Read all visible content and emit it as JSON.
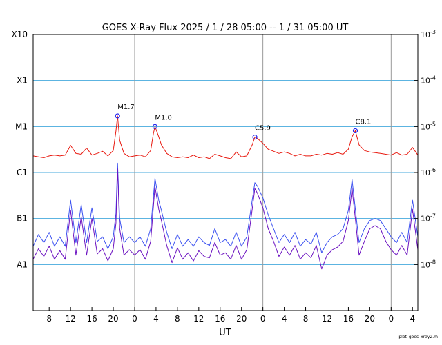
{
  "chart_data": {
    "type": "line",
    "title": "GOES X-Ray Flux   2025  /  1 / 28   05:00 --  1 / 31   05:00   UT",
    "xlabel": "UT",
    "footer": "plot_goes_xray2.m",
    "y_scale": "log",
    "ylim": [
      1e-09,
      0.001
    ],
    "xlim_hours": [
      0,
      72
    ],
    "left_class_labels": [
      {
        "label": "X10",
        "value": 0.001
      },
      {
        "label": "X1",
        "value": 0.0001
      },
      {
        "label": "M1",
        "value": 1e-05
      },
      {
        "label": "C1",
        "value": 1e-06
      },
      {
        "label": "B1",
        "value": 1e-07
      },
      {
        "label": "A1",
        "value": 1e-08
      }
    ],
    "right_ticks": [
      {
        "base": "10",
        "exp": "-3",
        "value": 0.001
      },
      {
        "base": "10",
        "exp": "-4",
        "value": 0.0001
      },
      {
        "base": "10",
        "exp": "-5",
        "value": 1e-05
      },
      {
        "base": "10",
        "exp": "-6",
        "value": 1e-06
      },
      {
        "base": "10",
        "exp": "-7",
        "value": 1e-07
      },
      {
        "base": "10",
        "exp": "-8",
        "value": 1e-08
      }
    ],
    "grid_levels": [
      0.0001,
      1e-05,
      1e-06,
      1e-07,
      1e-08
    ],
    "day_boundaries_hours": [
      19,
      43,
      67
    ],
    "x_ticks": [
      {
        "h": 3,
        "label": "8"
      },
      {
        "h": 7,
        "label": "12"
      },
      {
        "h": 11,
        "label": "16"
      },
      {
        "h": 15,
        "label": "20"
      },
      {
        "h": 19,
        "label": "0"
      },
      {
        "h": 23,
        "label": "4"
      },
      {
        "h": 27,
        "label": "8"
      },
      {
        "h": 31,
        "label": "12"
      },
      {
        "h": 35,
        "label": "16"
      },
      {
        "h": 39,
        "label": "20"
      },
      {
        "h": 43,
        "label": "0"
      },
      {
        "h": 47,
        "label": "4"
      },
      {
        "h": 51,
        "label": "8"
      },
      {
        "h": 55,
        "label": "12"
      },
      {
        "h": 59,
        "label": "16"
      },
      {
        "h": 63,
        "label": "20"
      },
      {
        "h": 67,
        "label": "0"
      },
      {
        "h": 71,
        "label": "4"
      }
    ],
    "colors": {
      "long": "#e8190f",
      "short_a": "#3a50f0",
      "short_b": "#6a10c0",
      "grid": "#44aadd",
      "day_line": "#999999"
    },
    "flares": [
      {
        "label": "M1.7",
        "h": 15.8,
        "flux": 1.7e-05
      },
      {
        "label": "M1.0",
        "h": 22.8,
        "flux": 1e-05
      },
      {
        "label": "C5.9",
        "h": 41.5,
        "flux": 5.9e-06
      },
      {
        "label": "C8.1",
        "h": 60.3,
        "flux": 8.1e-06
      }
    ],
    "series": [
      {
        "key": "long",
        "points": [
          [
            0,
            2.3e-06
          ],
          [
            1,
            2.2e-06
          ],
          [
            2,
            2.1e-06
          ],
          [
            3,
            2.3e-06
          ],
          [
            4,
            2.4e-06
          ],
          [
            5,
            2.3e-06
          ],
          [
            6,
            2.4e-06
          ],
          [
            7,
            3.9e-06
          ],
          [
            8,
            2.6e-06
          ],
          [
            9,
            2.5e-06
          ],
          [
            10,
            3.4e-06
          ],
          [
            11,
            2.4e-06
          ],
          [
            12,
            2.6e-06
          ],
          [
            13,
            2.9e-06
          ],
          [
            14,
            2.3e-06
          ],
          [
            15,
            3e-06
          ],
          [
            15.5,
            8e-06
          ],
          [
            15.8,
            1.7e-05
          ],
          [
            16.2,
            5e-06
          ],
          [
            17,
            2.6e-06
          ],
          [
            18,
            2.2e-06
          ],
          [
            19,
            2.3e-06
          ],
          [
            20,
            2.4e-06
          ],
          [
            21,
            2.2e-06
          ],
          [
            22,
            3e-06
          ],
          [
            22.5,
            7e-06
          ],
          [
            22.8,
            1e-05
          ],
          [
            23.5,
            6e-06
          ],
          [
            24,
            4e-06
          ],
          [
            25,
            2.6e-06
          ],
          [
            26,
            2.2e-06
          ],
          [
            27,
            2.1e-06
          ],
          [
            28,
            2.2e-06
          ],
          [
            29,
            2.1e-06
          ],
          [
            30,
            2.4e-06
          ],
          [
            31,
            2.1e-06
          ],
          [
            32,
            2.2e-06
          ],
          [
            33,
            2e-06
          ],
          [
            34,
            2.5e-06
          ],
          [
            35,
            2.3e-06
          ],
          [
            36,
            2.1e-06
          ],
          [
            37,
            2e-06
          ],
          [
            38,
            2.8e-06
          ],
          [
            39,
            2.2e-06
          ],
          [
            40,
            2.3e-06
          ],
          [
            41,
            4e-06
          ],
          [
            41.5,
            5.9e-06
          ],
          [
            42,
            5.5e-06
          ],
          [
            43,
            4.3e-06
          ],
          [
            44,
            3.2e-06
          ],
          [
            45,
            2.9e-06
          ],
          [
            46,
            2.6e-06
          ],
          [
            47,
            2.8e-06
          ],
          [
            48,
            2.6e-06
          ],
          [
            49,
            2.3e-06
          ],
          [
            50,
            2.5e-06
          ],
          [
            51,
            2.3e-06
          ],
          [
            52,
            2.3e-06
          ],
          [
            53,
            2.5e-06
          ],
          [
            54,
            2.4e-06
          ],
          [
            55,
            2.6e-06
          ],
          [
            56,
            2.5e-06
          ],
          [
            57,
            2.7e-06
          ],
          [
            58,
            2.5e-06
          ],
          [
            59,
            3.2e-06
          ],
          [
            59.7,
            6e-06
          ],
          [
            60.3,
            8.1e-06
          ],
          [
            61,
            4e-06
          ],
          [
            62,
            3e-06
          ],
          [
            63,
            2.8e-06
          ],
          [
            64,
            2.7e-06
          ],
          [
            65,
            2.6e-06
          ],
          [
            66,
            2.5e-06
          ],
          [
            67,
            2.4e-06
          ],
          [
            68,
            2.7e-06
          ],
          [
            69,
            2.4e-06
          ],
          [
            70,
            2.5e-06
          ],
          [
            71,
            3.5e-06
          ],
          [
            72,
            2.4e-06
          ]
        ]
      },
      {
        "key": "short_a",
        "points": [
          [
            0,
            2.5e-08
          ],
          [
            1,
            4.5e-08
          ],
          [
            2,
            3e-08
          ],
          [
            3,
            5e-08
          ],
          [
            4,
            2.5e-08
          ],
          [
            5,
            4e-08
          ],
          [
            6,
            2.5e-08
          ],
          [
            7,
            2.5e-07
          ],
          [
            8,
            3e-08
          ],
          [
            9,
            2e-07
          ],
          [
            10,
            3e-08
          ],
          [
            11,
            1.7e-07
          ],
          [
            12,
            3.2e-08
          ],
          [
            13,
            4e-08
          ],
          [
            14,
            2.2e-08
          ],
          [
            15,
            4e-08
          ],
          [
            15.5,
            1.3e-07
          ],
          [
            15.8,
            1.6e-06
          ],
          [
            16.2,
            1e-07
          ],
          [
            17,
            3e-08
          ],
          [
            18,
            4e-08
          ],
          [
            19,
            3e-08
          ],
          [
            20,
            4e-08
          ],
          [
            21,
            2.5e-08
          ],
          [
            22,
            6e-08
          ],
          [
            22.8,
            7.5e-07
          ],
          [
            23.5,
            2.5e-07
          ],
          [
            24,
            1.5e-07
          ],
          [
            25,
            5e-08
          ],
          [
            26,
            2.2e-08
          ],
          [
            27,
            4.5e-08
          ],
          [
            28,
            2.5e-08
          ],
          [
            29,
            3.5e-08
          ],
          [
            30,
            2.5e-08
          ],
          [
            31,
            4e-08
          ],
          [
            32,
            3e-08
          ],
          [
            33,
            2.6e-08
          ],
          [
            34,
            6e-08
          ],
          [
            35,
            3e-08
          ],
          [
            36,
            3.5e-08
          ],
          [
            37,
            2.5e-08
          ],
          [
            38,
            5e-08
          ],
          [
            39,
            2.5e-08
          ],
          [
            40,
            4e-08
          ],
          [
            41,
            2.5e-07
          ],
          [
            41.5,
            6e-07
          ],
          [
            42,
            5e-07
          ],
          [
            43,
            2.8e-07
          ],
          [
            44,
            1.2e-07
          ],
          [
            45,
            6e-08
          ],
          [
            46,
            3e-08
          ],
          [
            47,
            4.5e-08
          ],
          [
            48,
            3e-08
          ],
          [
            49,
            5e-08
          ],
          [
            50,
            2.5e-08
          ],
          [
            51,
            3.5e-08
          ],
          [
            52,
            2.8e-08
          ],
          [
            53,
            5e-08
          ],
          [
            54,
            1.8e-08
          ],
          [
            55,
            3e-08
          ],
          [
            56,
            4e-08
          ],
          [
            57,
            4.5e-08
          ],
          [
            58,
            6e-08
          ],
          [
            59,
            1.5e-07
          ],
          [
            59.7,
            7e-07
          ],
          [
            60.3,
            1.6e-07
          ],
          [
            61,
            3e-08
          ],
          [
            62,
            6e-08
          ],
          [
            63,
            9e-08
          ],
          [
            64,
            1e-07
          ],
          [
            65,
            9e-08
          ],
          [
            66,
            6e-08
          ],
          [
            67,
            4e-08
          ],
          [
            68,
            3e-08
          ],
          [
            69,
            5e-08
          ],
          [
            70,
            3e-08
          ],
          [
            71,
            2.5e-07
          ],
          [
            72,
            4e-08
          ]
        ]
      },
      {
        "key": "short_b",
        "points": [
          [
            0,
            1.3e-08
          ],
          [
            1,
            2.2e-08
          ],
          [
            2,
            1.5e-08
          ],
          [
            3,
            2.5e-08
          ],
          [
            4,
            1.3e-08
          ],
          [
            5,
            2e-08
          ],
          [
            6,
            1.3e-08
          ],
          [
            7,
            1.5e-07
          ],
          [
            8,
            1.6e-08
          ],
          [
            9,
            1.1e-07
          ],
          [
            10,
            1.6e-08
          ],
          [
            11,
            1e-07
          ],
          [
            12,
            1.7e-08
          ],
          [
            13,
            2.2e-08
          ],
          [
            14,
            1.2e-08
          ],
          [
            15,
            2.2e-08
          ],
          [
            15.5,
            8e-08
          ],
          [
            15.8,
            1.2e-06
          ],
          [
            16.2,
            6e-08
          ],
          [
            17,
            1.6e-08
          ],
          [
            18,
            2.1e-08
          ],
          [
            19,
            1.6e-08
          ],
          [
            20,
            2.1e-08
          ],
          [
            21,
            1.3e-08
          ],
          [
            22,
            3.2e-08
          ],
          [
            22.8,
            5e-07
          ],
          [
            23.5,
            1.6e-07
          ],
          [
            24,
            9e-08
          ],
          [
            25,
            2.6e-08
          ],
          [
            26,
            1.1e-08
          ],
          [
            27,
            2.3e-08
          ],
          [
            28,
            1.3e-08
          ],
          [
            29,
            1.8e-08
          ],
          [
            30,
            1.2e-08
          ],
          [
            31,
            2e-08
          ],
          [
            32,
            1.5e-08
          ],
          [
            33,
            1.4e-08
          ],
          [
            34,
            3e-08
          ],
          [
            35,
            1.6e-08
          ],
          [
            36,
            1.8e-08
          ],
          [
            37,
            1.3e-08
          ],
          [
            38,
            2.6e-08
          ],
          [
            39,
            1.3e-08
          ],
          [
            40,
            2.1e-08
          ],
          [
            41,
            1.6e-07
          ],
          [
            41.5,
            4.5e-07
          ],
          [
            42,
            3.5e-07
          ],
          [
            43,
            1.7e-07
          ],
          [
            44,
            6e-08
          ],
          [
            45,
            3.2e-08
          ],
          [
            46,
            1.5e-08
          ],
          [
            47,
            2.4e-08
          ],
          [
            48,
            1.6e-08
          ],
          [
            49,
            2.6e-08
          ],
          [
            50,
            1.3e-08
          ],
          [
            51,
            1.8e-08
          ],
          [
            52,
            1.4e-08
          ],
          [
            53,
            2.6e-08
          ],
          [
            54,
            8e-09
          ],
          [
            55,
            1.6e-08
          ],
          [
            56,
            2.1e-08
          ],
          [
            57,
            2.4e-08
          ],
          [
            58,
            3.2e-08
          ],
          [
            59,
            9e-08
          ],
          [
            59.7,
            4.5e-07
          ],
          [
            60.3,
            1e-07
          ],
          [
            61,
            1.6e-08
          ],
          [
            62,
            3.2e-08
          ],
          [
            63,
            6e-08
          ],
          [
            64,
            7e-08
          ],
          [
            65,
            6e-08
          ],
          [
            66,
            3.2e-08
          ],
          [
            67,
            2.1e-08
          ],
          [
            68,
            1.6e-08
          ],
          [
            69,
            2.6e-08
          ],
          [
            70,
            1.6e-08
          ],
          [
            71,
            1.6e-07
          ],
          [
            72,
            2.1e-08
          ]
        ]
      }
    ]
  }
}
